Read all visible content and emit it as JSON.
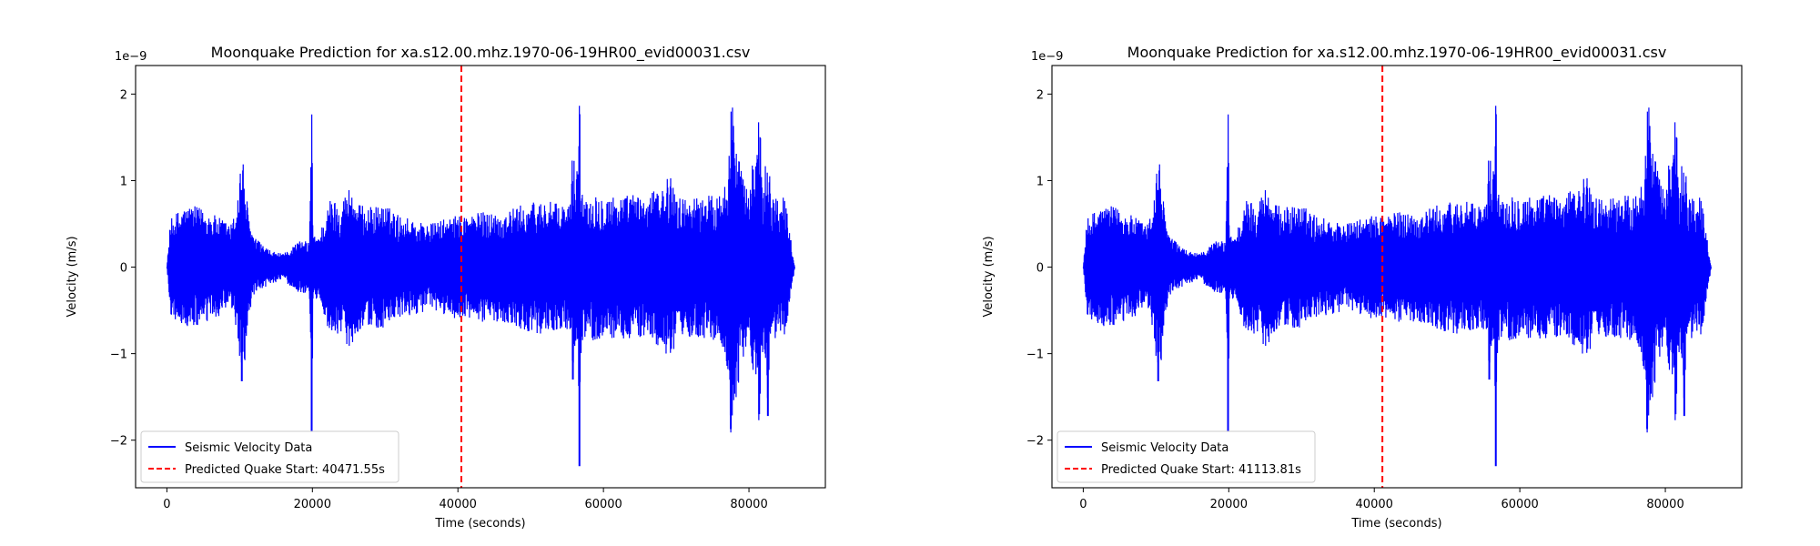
{
  "chart_data": [
    {
      "type": "line",
      "title": "Moonquake Prediction for xa.s12.00.mhz.1970-06-19HR00_evid00031.csv",
      "xlabel": "Time (seconds)",
      "ylabel": "Velocity (m/s)",
      "y_scale_label": "1e−9",
      "xlim": [
        -4300,
        90500
      ],
      "ylim": [
        -2.55,
        2.33
      ],
      "x_ticks": [
        0,
        20000,
        40000,
        60000,
        80000
      ],
      "x_tick_labels": [
        "0",
        "20000",
        "40000",
        "60000",
        "80000"
      ],
      "y_ticks": [
        2,
        1,
        0,
        -1,
        -2
      ],
      "y_tick_labels": [
        "2",
        "1",
        "0",
        "−1",
        "−2"
      ],
      "grid": false,
      "legend_position": "lower-left",
      "series": [
        {
          "name": "Seismic Velocity Data",
          "color": "#0000ff",
          "style": "solid",
          "envelope": [
            [
              0,
              0.0
            ],
            [
              500,
              0.55
            ],
            [
              1500,
              0.65
            ],
            [
              3000,
              0.72
            ],
            [
              5000,
              0.68
            ],
            [
              7000,
              0.58
            ],
            [
              9000,
              0.5
            ],
            [
              9800,
              0.9
            ],
            [
              10200,
              1.3
            ],
            [
              10600,
              1.2
            ],
            [
              11200,
              0.6
            ],
            [
              12000,
              0.35
            ],
            [
              14000,
              0.2
            ],
            [
              16000,
              0.15
            ],
            [
              18000,
              0.3
            ],
            [
              19600,
              0.3
            ],
            [
              19900,
              2.08
            ],
            [
              20100,
              0.35
            ],
            [
              21000,
              0.4
            ],
            [
              22500,
              0.8
            ],
            [
              24000,
              0.75
            ],
            [
              25000,
              0.95
            ],
            [
              26500,
              0.72
            ],
            [
              28000,
              0.7
            ],
            [
              30000,
              0.72
            ],
            [
              32000,
              0.6
            ],
            [
              34000,
              0.55
            ],
            [
              36000,
              0.5
            ],
            [
              38000,
              0.55
            ],
            [
              40000,
              0.6
            ],
            [
              42000,
              0.62
            ],
            [
              44000,
              0.65
            ],
            [
              46000,
              0.62
            ],
            [
              48000,
              0.7
            ],
            [
              50000,
              0.75
            ],
            [
              52000,
              0.78
            ],
            [
              54000,
              0.72
            ],
            [
              55500,
              0.75
            ],
            [
              55800,
              1.55
            ],
            [
              56200,
              0.9
            ],
            [
              56700,
              2.1
            ],
            [
              57000,
              0.85
            ],
            [
              60000,
              0.85
            ],
            [
              62000,
              0.82
            ],
            [
              64000,
              0.85
            ],
            [
              66000,
              0.8
            ],
            [
              69600,
              1.1
            ],
            [
              70000,
              0.8
            ],
            [
              73000,
              0.82
            ],
            [
              76000,
              0.85
            ],
            [
              77200,
              1.3
            ],
            [
              77500,
              2.05
            ],
            [
              78000,
              1.7
            ],
            [
              79000,
              1.1
            ],
            [
              80000,
              0.85
            ],
            [
              81400,
              1.84
            ],
            [
              82000,
              0.9
            ],
            [
              82600,
              1.62
            ],
            [
              83000,
              0.85
            ],
            [
              85000,
              0.8
            ],
            [
              86300,
              0.0
            ]
          ]
        },
        {
          "name": "Predicted Quake Start: 40471.55s",
          "color": "#ff0000",
          "style": "dashed",
          "x": 40471.55
        }
      ]
    },
    {
      "type": "line",
      "title": "Moonquake Prediction for xa.s12.00.mhz.1970-06-19HR00_evid00031.csv",
      "xlabel": "Time (seconds)",
      "ylabel": "Velocity (m/s)",
      "y_scale_label": "1e−9",
      "xlim": [
        -4300,
        90500
      ],
      "ylim": [
        -2.55,
        2.33
      ],
      "x_ticks": [
        0,
        20000,
        40000,
        60000,
        80000
      ],
      "x_tick_labels": [
        "0",
        "20000",
        "40000",
        "60000",
        "80000"
      ],
      "y_ticks": [
        2,
        1,
        0,
        -1,
        -2
      ],
      "y_tick_labels": [
        "2",
        "1",
        "0",
        "−1",
        "−2"
      ],
      "grid": false,
      "legend_position": "lower-left",
      "series": [
        {
          "name": "Seismic Velocity Data",
          "color": "#0000ff",
          "style": "solid",
          "envelope": [
            [
              0,
              0.0
            ],
            [
              500,
              0.55
            ],
            [
              1500,
              0.65
            ],
            [
              3000,
              0.72
            ],
            [
              5000,
              0.68
            ],
            [
              7000,
              0.58
            ],
            [
              9000,
              0.5
            ],
            [
              9800,
              0.9
            ],
            [
              10200,
              1.3
            ],
            [
              10600,
              1.2
            ],
            [
              11200,
              0.6
            ],
            [
              12000,
              0.35
            ],
            [
              14000,
              0.2
            ],
            [
              16000,
              0.15
            ],
            [
              18000,
              0.3
            ],
            [
              19600,
              0.3
            ],
            [
              19900,
              2.08
            ],
            [
              20100,
              0.35
            ],
            [
              21000,
              0.4
            ],
            [
              22500,
              0.8
            ],
            [
              24000,
              0.75
            ],
            [
              25000,
              0.95
            ],
            [
              26500,
              0.72
            ],
            [
              28000,
              0.7
            ],
            [
              30000,
              0.72
            ],
            [
              32000,
              0.6
            ],
            [
              34000,
              0.55
            ],
            [
              36000,
              0.5
            ],
            [
              38000,
              0.55
            ],
            [
              40000,
              0.6
            ],
            [
              42000,
              0.62
            ],
            [
              44000,
              0.65
            ],
            [
              46000,
              0.62
            ],
            [
              48000,
              0.7
            ],
            [
              50000,
              0.75
            ],
            [
              52000,
              0.78
            ],
            [
              54000,
              0.72
            ],
            [
              55500,
              0.75
            ],
            [
              55800,
              1.55
            ],
            [
              56200,
              0.9
            ],
            [
              56700,
              2.1
            ],
            [
              57000,
              0.85
            ],
            [
              60000,
              0.85
            ],
            [
              62000,
              0.82
            ],
            [
              64000,
              0.85
            ],
            [
              66000,
              0.8
            ],
            [
              69600,
              1.1
            ],
            [
              70000,
              0.8
            ],
            [
              73000,
              0.82
            ],
            [
              76000,
              0.85
            ],
            [
              77200,
              1.3
            ],
            [
              77500,
              2.05
            ],
            [
              78000,
              1.7
            ],
            [
              79000,
              1.1
            ],
            [
              80000,
              0.85
            ],
            [
              81400,
              1.84
            ],
            [
              82000,
              0.9
            ],
            [
              82600,
              1.62
            ],
            [
              83000,
              0.85
            ],
            [
              85000,
              0.8
            ],
            [
              86300,
              0.0
            ]
          ]
        },
        {
          "name": "Predicted Quake Start: 41113.81s",
          "color": "#ff0000",
          "style": "dashed",
          "x": 41113.81
        }
      ]
    }
  ]
}
